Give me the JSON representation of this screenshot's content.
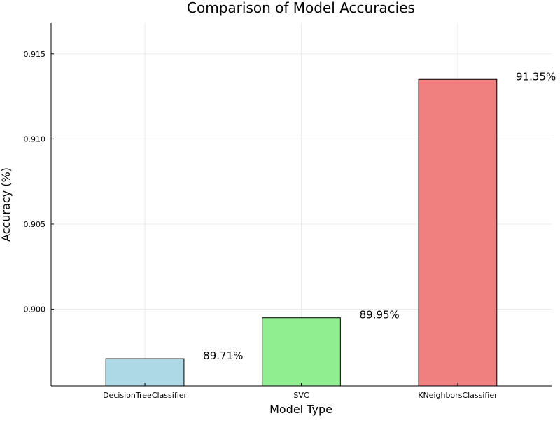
{
  "chart_data": {
    "type": "bar",
    "title": "Comparison of Model Accuracies",
    "xlabel": "Model Type",
    "ylabel": "Accuracy (%)",
    "categories": [
      "DecisionTreeClassifier",
      "SVC",
      "KNeighborsClassifier"
    ],
    "values": [
      0.8971,
      0.8995,
      0.9135
    ],
    "data_labels": [
      "89.71%",
      "89.95%",
      "91.35%"
    ],
    "colors": [
      "#add8e6",
      "#90ee90",
      "#f08080"
    ],
    "ylim": [
      0.8955,
      0.9168
    ],
    "yticks": [
      0.9,
      0.905,
      0.91,
      0.915
    ],
    "ytick_labels": [
      "0.900",
      "0.905",
      "0.910",
      "0.915"
    ],
    "grid": true,
    "legend": "none"
  }
}
